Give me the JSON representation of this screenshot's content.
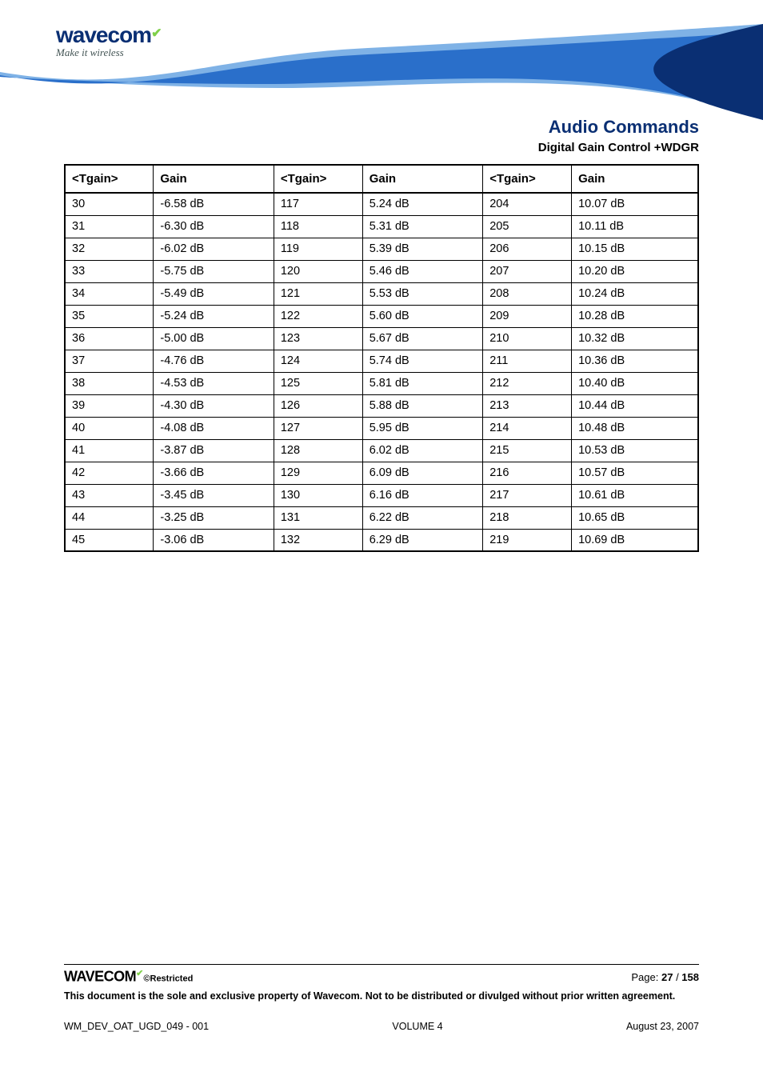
{
  "logo": {
    "brand": "wavecom",
    "tagline": "Make it wireless"
  },
  "header": {
    "title": "Audio Commands",
    "subtitle": "Digital Gain Control +WDGR",
    "title_color": "#0a2f73",
    "swoosh_colors": {
      "top": "#2a6fca",
      "mid": "#7fb2e6",
      "edge": "#0a2f73"
    }
  },
  "table": {
    "columns": [
      "<Tgain>",
      "Gain",
      "<Tgain>",
      "Gain",
      "<Tgain>",
      "Gain"
    ],
    "rows": [
      [
        "30",
        "-6.58 dB",
        "117",
        "5.24 dB",
        "204",
        "10.07 dB"
      ],
      [
        "31",
        "-6.30 dB",
        "118",
        "5.31 dB",
        "205",
        "10.11 dB"
      ],
      [
        "32",
        "-6.02 dB",
        "119",
        "5.39 dB",
        "206",
        "10.15 dB"
      ],
      [
        "33",
        "-5.75 dB",
        "120",
        "5.46 dB",
        "207",
        "10.20 dB"
      ],
      [
        "34",
        "-5.49 dB",
        "121",
        "5.53 dB",
        "208",
        "10.24 dB"
      ],
      [
        "35",
        "-5.24 dB",
        "122",
        "5.60 dB",
        "209",
        "10.28 dB"
      ],
      [
        "36",
        "-5.00 dB",
        "123",
        "5.67 dB",
        "210",
        "10.32 dB"
      ],
      [
        "37",
        "-4.76 dB",
        "124",
        "5.74 dB",
        "211",
        "10.36 dB"
      ],
      [
        "38",
        "-4.53 dB",
        "125",
        "5.81 dB",
        "212",
        "10.40 dB"
      ],
      [
        "39",
        "-4.30 dB",
        "126",
        "5.88 dB",
        "213",
        "10.44 dB"
      ],
      [
        "40",
        "-4.08 dB",
        "127",
        "5.95 dB",
        "214",
        "10.48 dB"
      ],
      [
        "41",
        "-3.87 dB",
        "128",
        "6.02 dB",
        "215",
        "10.53 dB"
      ],
      [
        "42",
        "-3.66 dB",
        "129",
        "6.09 dB",
        "216",
        "10.57 dB"
      ],
      [
        "43",
        "-3.45 dB",
        "130",
        "6.16 dB",
        "217",
        "10.61 dB"
      ],
      [
        "44",
        "-3.25 dB",
        "131",
        "6.22 dB",
        "218",
        "10.65 dB"
      ],
      [
        "45",
        "-3.06 dB",
        "132",
        "6.29 dB",
        "219",
        "10.69 dB"
      ]
    ],
    "border_color": "#000000",
    "font_size": 14.5
  },
  "footer": {
    "logo": "WAVECOM",
    "restricted": "©Restricted",
    "page_label": "Page: ",
    "page_current": "27",
    "page_sep": " / ",
    "page_total": "158",
    "legal": "This document is the sole and exclusive property of Wavecom. Not to be distributed or divulged without prior written agreement.",
    "doc_id": "WM_DEV_OAT_UGD_049 - 001",
    "volume": "VOLUME 4",
    "date": "August 23, 2007"
  }
}
